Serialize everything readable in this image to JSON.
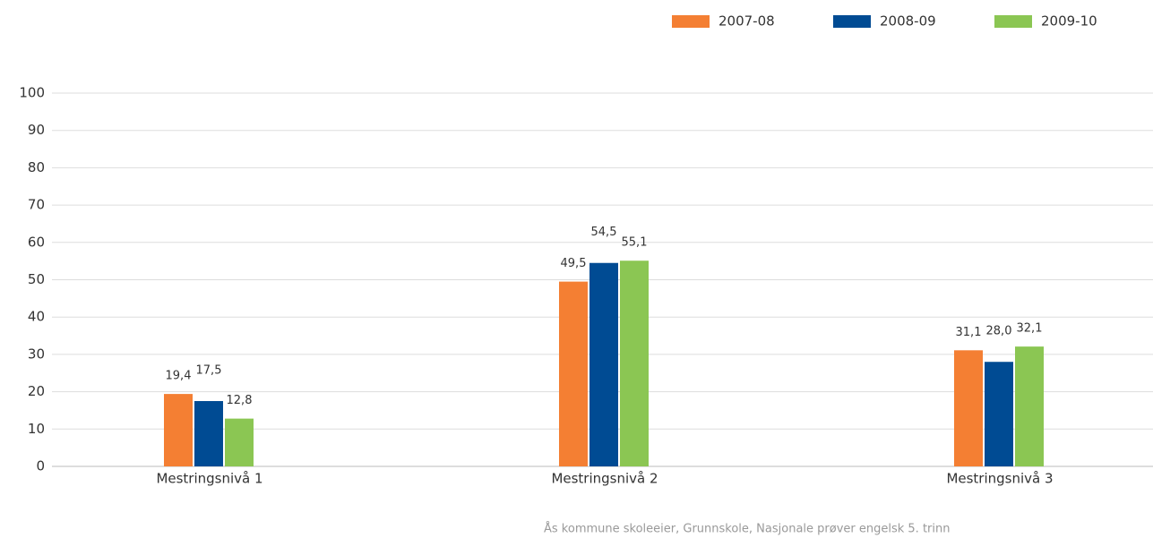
{
  "chart_data": {
    "type": "bar",
    "categories": [
      "Mestringsnivå 1",
      "Mestringsnivå 2",
      "Mestringsnivå 3"
    ],
    "series": [
      {
        "name": "2007-08",
        "color": "#f47f33",
        "values": [
          19.4,
          49.5,
          31.1
        ],
        "value_labels": [
          "19,4",
          "49,5",
          "31,1"
        ]
      },
      {
        "name": "2008-09",
        "color": "#004b93",
        "values": [
          17.5,
          54.5,
          28.0
        ],
        "value_labels": [
          "17,5",
          "54,5",
          "28,0"
        ]
      },
      {
        "name": "2009-10",
        "color": "#8bc653",
        "values": [
          12.8,
          55.1,
          32.1
        ],
        "value_labels": [
          "12,8",
          "55,1",
          "32,1"
        ]
      }
    ],
    "ylim": [
      0,
      100
    ],
    "yticks": [
      0,
      10,
      20,
      30,
      40,
      50,
      60,
      70,
      80,
      90,
      100
    ],
    "grid": true,
    "legend": "top-right",
    "source": "Ås kommune skoleeier, Grunnskole, Nasjonale prøver engelsk 5. trinn"
  }
}
